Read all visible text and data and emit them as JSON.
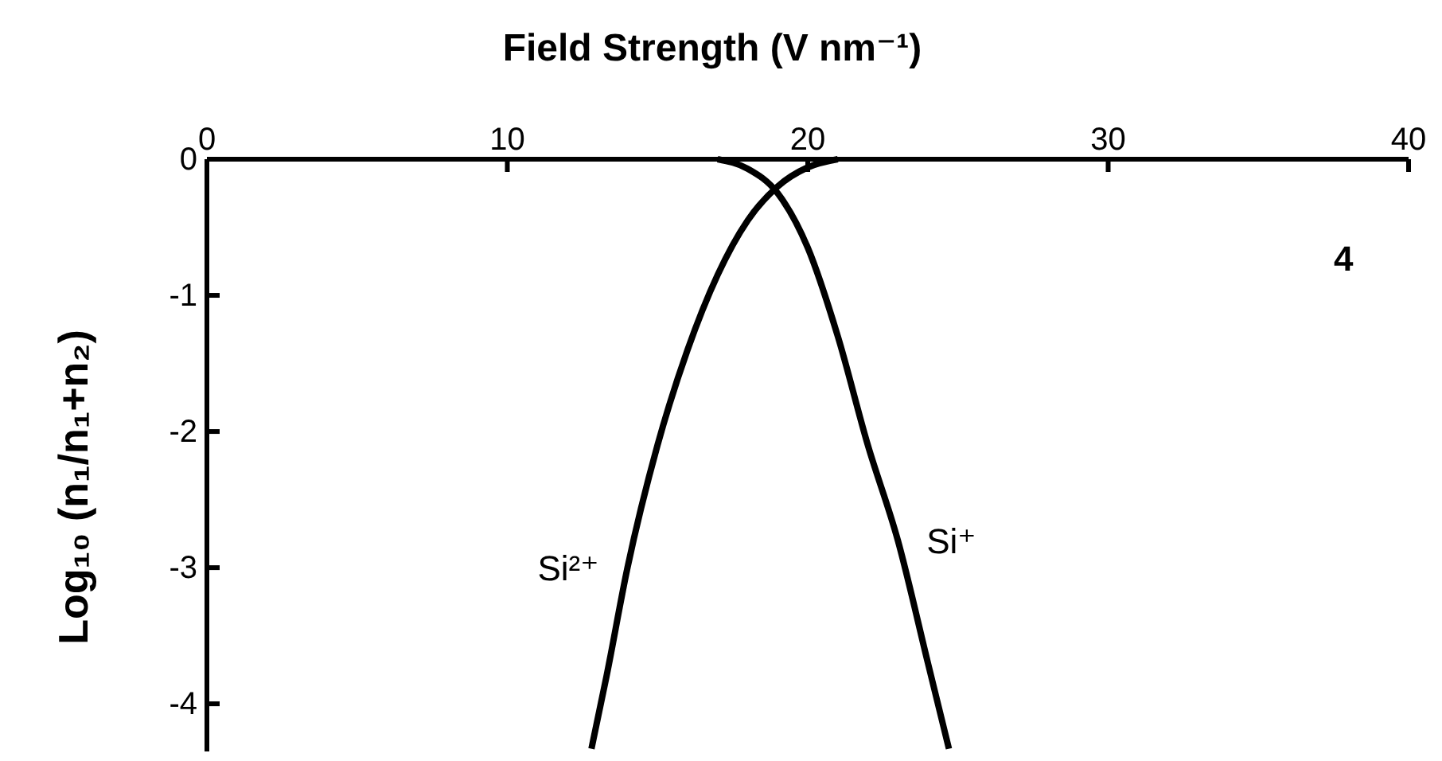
{
  "chart_data": {
    "type": "line",
    "xlabel": "Field Strength  (V nm⁻¹)",
    "ylabel": "Log₁₀ (n₁/n₁+n₂)",
    "xlim": [
      0,
      40
    ],
    "xticks": [
      0,
      10,
      20,
      30,
      40
    ],
    "ylim": [
      -4.35,
      0
    ],
    "yticks": [
      0,
      -1,
      -2,
      -3,
      -4
    ],
    "grid": false,
    "marker": "none",
    "legend": false,
    "annotations": [
      "4"
    ],
    "series": [
      {
        "name": "Si²⁺",
        "color": "#000000",
        "x": [
          12.8,
          13.3,
          14,
          15,
          16,
          17,
          18,
          19,
          20,
          21
        ],
        "values": [
          -4.33,
          -3.8,
          -3,
          -2.1,
          -1.4,
          -0.85,
          -0.45,
          -0.2,
          -0.06,
          0
        ]
      },
      {
        "name": "Si⁺",
        "color": "#000000",
        "x": [
          17,
          18,
          19,
          20,
          21,
          22,
          23,
          24,
          24.7
        ],
        "values": [
          0,
          -0.07,
          -0.25,
          -0.65,
          -1.3,
          -2.1,
          -2.8,
          -3.7,
          -4.33
        ]
      }
    ]
  }
}
